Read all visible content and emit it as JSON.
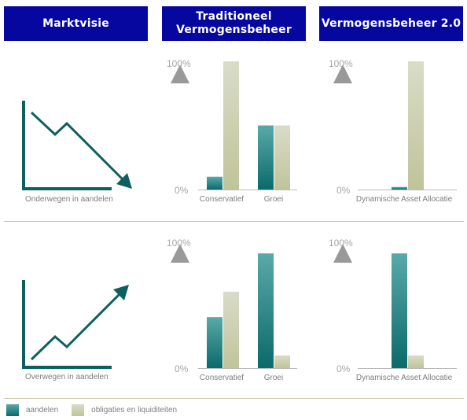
{
  "headers": {
    "col1": "Marktvisie",
    "col2": "Traditioneel Vermogensbeheer",
    "col3": "Vermogensbeheer 2.0"
  },
  "market_view": {
    "row1_label": "Onderwegen in aandelen",
    "row2_label": "Overwegen in aandelen"
  },
  "axis": {
    "top": "100%",
    "bottom": "0%"
  },
  "legend": {
    "series_a": "aandelen",
    "series_b": "obligaties en liquiditeiten"
  },
  "colors": {
    "aandelen_top": "#5aa9a9",
    "aandelen_bottom": "#0b6a6a",
    "obligaties_top": "#d9dcc8",
    "obligaties_bottom": "#c0c49a",
    "header_bg": "#05079f",
    "arrow": "#0e6060"
  },
  "chart_data": [
    {
      "type": "bar",
      "categories": [
        "Conservatief",
        "Groei"
      ],
      "series": [
        {
          "name": "aandelen",
          "values": [
            10,
            50
          ]
        },
        {
          "name": "obligaties en liquiditeiten",
          "values": [
            100,
            50
          ]
        }
      ],
      "ylim": [
        0,
        100
      ]
    },
    {
      "type": "bar",
      "categories": [
        "Dynamische Asset Allocatie"
      ],
      "series": [
        {
          "name": "aandelen",
          "values": [
            2
          ]
        },
        {
          "name": "obligaties en liquiditeiten",
          "values": [
            100
          ]
        }
      ],
      "ylim": [
        0,
        100
      ]
    },
    {
      "type": "bar",
      "categories": [
        "Conservatief",
        "Groei"
      ],
      "series": [
        {
          "name": "aandelen",
          "values": [
            40,
            90
          ]
        },
        {
          "name": "obligaties en liquiditeiten",
          "values": [
            60,
            10
          ]
        }
      ],
      "ylim": [
        0,
        100
      ]
    },
    {
      "type": "bar",
      "categories": [
        "Dynamische Asset Allocatie"
      ],
      "series": [
        {
          "name": "aandelen",
          "values": [
            90
          ]
        },
        {
          "name": "obligaties en liquiditeiten",
          "values": [
            10
          ]
        }
      ],
      "ylim": [
        0,
        100
      ]
    }
  ]
}
